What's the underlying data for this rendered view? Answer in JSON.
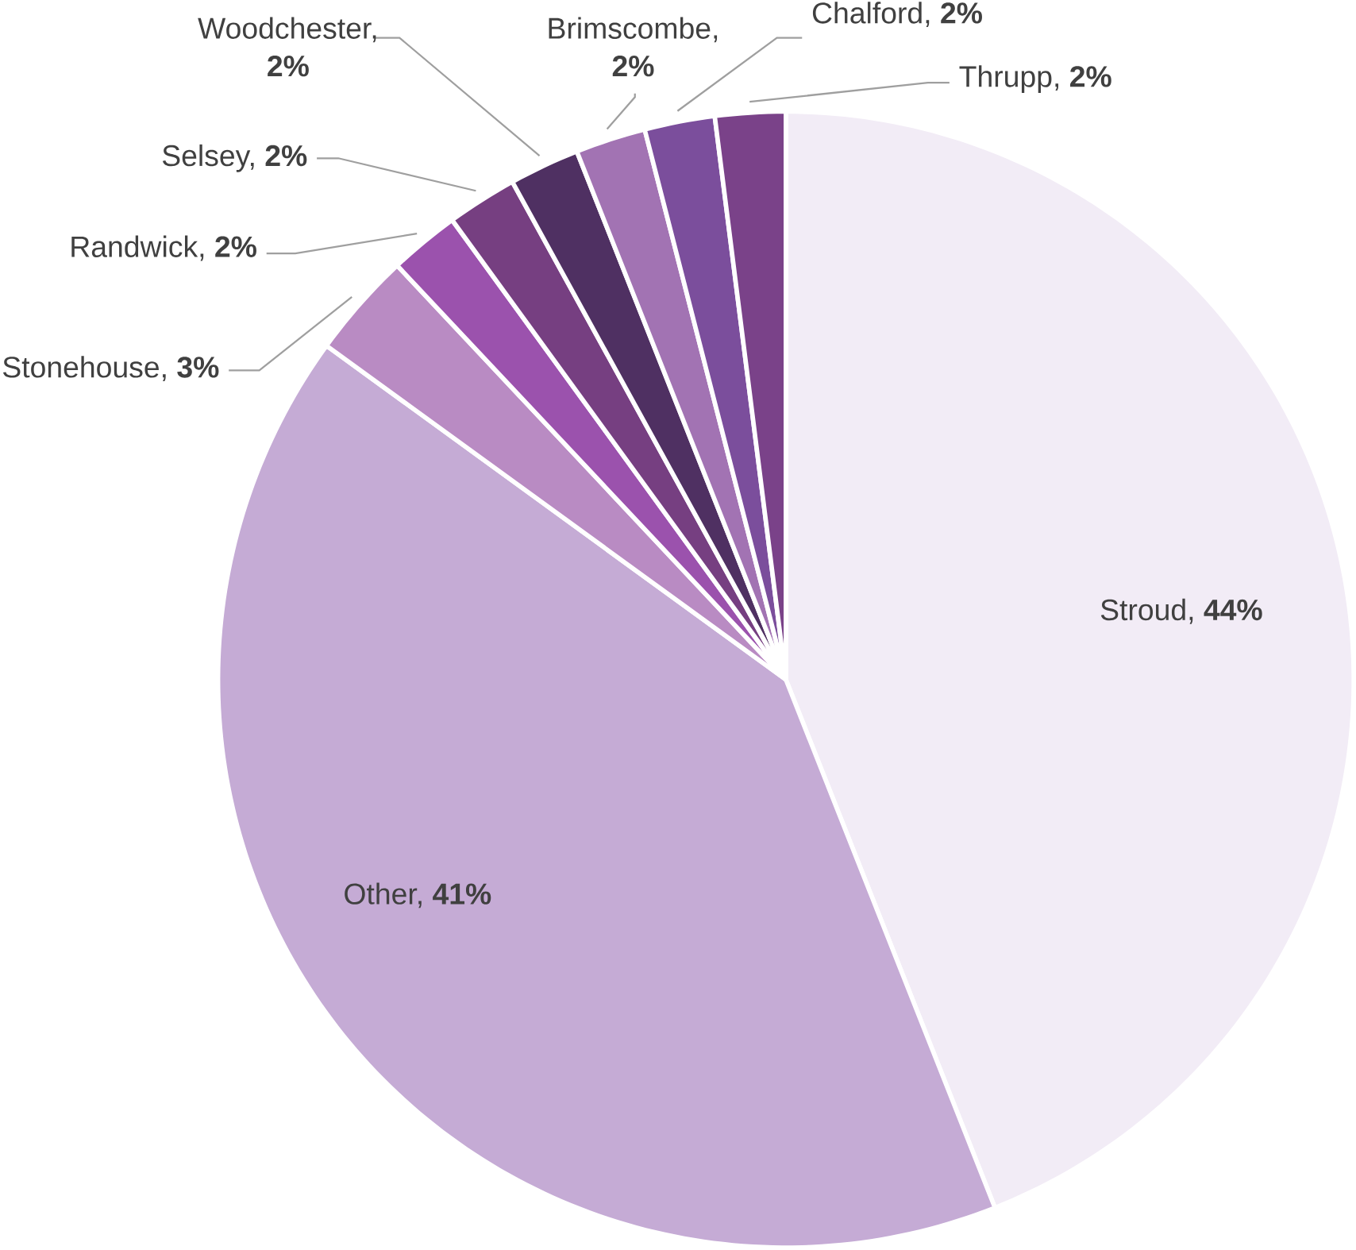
{
  "chart_data": {
    "type": "pie",
    "categories": [
      "Stroud, **44%**",
      "Other, **41%**",
      "Stonehouse, **3%**",
      "Randwick, **2%**",
      "Selsey, **2%**",
      "Woodchester, **2%**",
      "Brimscombe, **2%**",
      "Chalford, **2%**",
      "Thrupp, **2%**"
    ],
    "values": [
      44,
      41,
      3,
      2,
      2,
      2,
      2,
      2,
      2
    ],
    "colors": [
      "#f2ecf6",
      "#c5abd5",
      "#b98bc3",
      "#9b52ad",
      "#763f81",
      "#4f3062",
      "#a273b3",
      "#7b4e9c",
      "#7a4289"
    ]
  }
}
